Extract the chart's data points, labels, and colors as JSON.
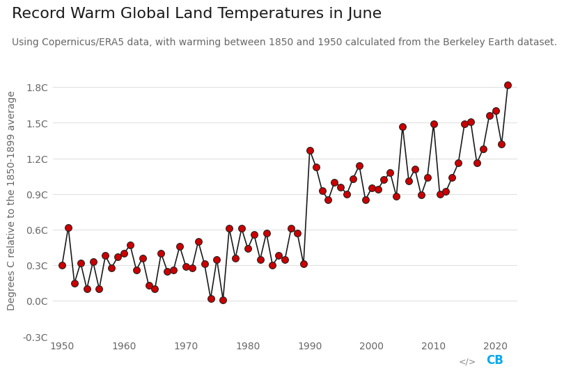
{
  "title": "Record Warm Global Land Temperatures in June",
  "subtitle": "Using Copernicus/ERA5 data, with warming between 1850 and 1950 calculated from the Berkeley Earth dataset.",
  "ylabel": "Degrees C relative to the 1850-1899 average",
  "background_color": "#ffffff",
  "line_color": "#1a1a1a",
  "marker_color": "#cc0000",
  "marker_edge_color": "#222222",
  "years": [
    1950,
    1951,
    1952,
    1953,
    1954,
    1955,
    1956,
    1957,
    1958,
    1959,
    1960,
    1961,
    1962,
    1963,
    1964,
    1965,
    1966,
    1967,
    1968,
    1969,
    1970,
    1971,
    1972,
    1973,
    1974,
    1975,
    1976,
    1977,
    1978,
    1979,
    1980,
    1981,
    1982,
    1983,
    1984,
    1985,
    1986,
    1987,
    1988,
    1989,
    1990,
    1991,
    1992,
    1993,
    1994,
    1995,
    1996,
    1997,
    1998,
    1999,
    2000,
    2001,
    2002,
    2003,
    2004,
    2005,
    2006,
    2007,
    2008,
    2009,
    2010,
    2011,
    2012,
    2013,
    2014,
    2015,
    2016,
    2017,
    2018,
    2019,
    2020,
    2021,
    2022
  ],
  "values": [
    0.3,
    0.62,
    0.15,
    0.32,
    0.1,
    0.33,
    0.1,
    0.38,
    0.28,
    0.37,
    0.4,
    0.47,
    0.26,
    0.36,
    0.13,
    0.1,
    0.4,
    0.25,
    0.26,
    0.46,
    0.29,
    0.28,
    0.5,
    0.31,
    0.02,
    0.35,
    0.01,
    0.61,
    0.36,
    0.61,
    0.44,
    0.56,
    0.35,
    0.57,
    0.3,
    0.38,
    0.35,
    0.61,
    0.57,
    0.31,
    1.27,
    1.13,
    0.93,
    0.85,
    1.0,
    0.96,
    0.9,
    1.03,
    1.14,
    0.85,
    0.95,
    0.94,
    1.02,
    1.08,
    0.88,
    1.47,
    1.01,
    1.11,
    0.89,
    1.04,
    1.49,
    0.9,
    0.92,
    1.04,
    1.16,
    1.49,
    1.51,
    1.16,
    1.28,
    1.56,
    1.6,
    1.32,
    1.82
  ],
  "ylim": [
    -0.3,
    2.0
  ],
  "yticks": [
    -0.3,
    0.0,
    0.3,
    0.6,
    0.9,
    1.2,
    1.5,
    1.8
  ],
  "ytick_labels": [
    "-0.3C",
    "0.0C",
    "0.3C",
    "0.6C",
    "0.9C",
    "1.2C",
    "1.5C",
    "1.8C"
  ],
  "xlim": [
    1948.5,
    2023.5
  ],
  "xticks": [
    1950,
    1960,
    1970,
    1980,
    1990,
    2000,
    2010,
    2020
  ],
  "title_fontsize": 16,
  "subtitle_fontsize": 10,
  "ylabel_fontsize": 10,
  "tick_fontsize": 10
}
